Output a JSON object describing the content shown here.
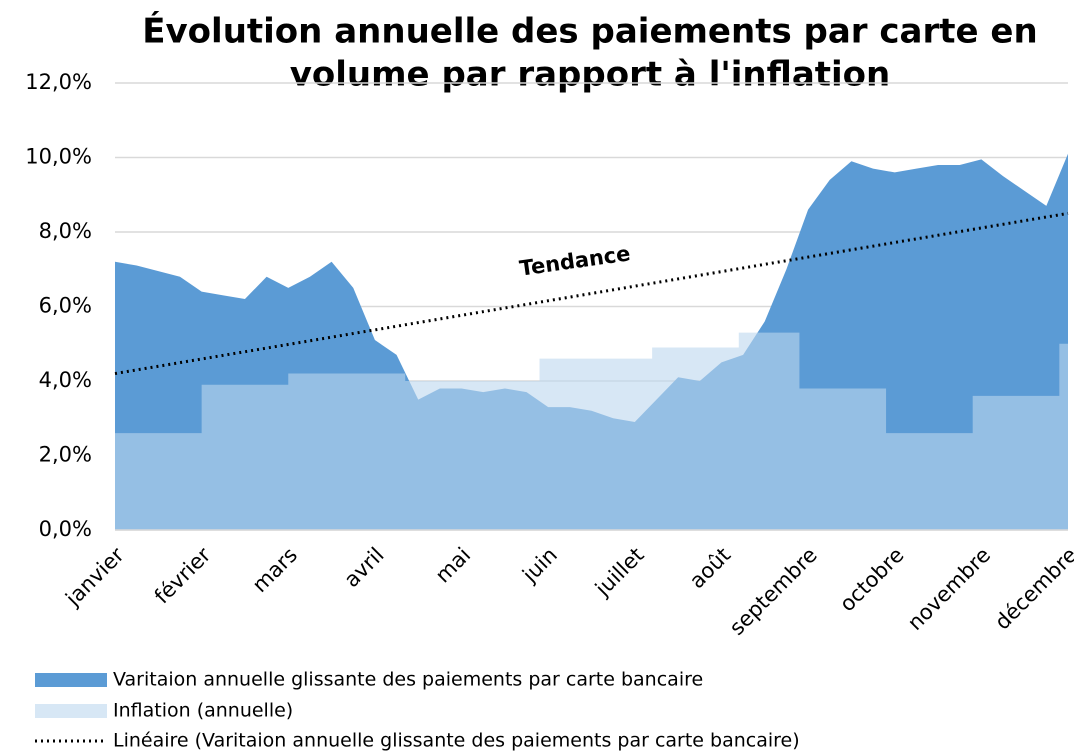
{
  "chart_data": {
    "type": "area",
    "title": [
      "Évolution annuelle des paiements par carte en",
      "volume par rapport à l'inflation"
    ],
    "annotation": "Tendance",
    "categories": [
      "janvier",
      "février",
      "mars",
      "avril",
      "mai",
      "juin",
      "juillet",
      "août",
      "septembre",
      "octobre",
      "novembre",
      "décembre"
    ],
    "xlim": [
      0,
      11
    ],
    "ylim": [
      0,
      12
    ],
    "yticks": [
      {
        "value": 0,
        "label": "0,0%"
      },
      {
        "value": 2,
        "label": "2,0%"
      },
      {
        "value": 4,
        "label": "4,0%"
      },
      {
        "value": 6,
        "label": "6,0%"
      },
      {
        "value": 8,
        "label": "8,0%"
      },
      {
        "value": 10,
        "label": "10,0%"
      },
      {
        "value": 12,
        "label": "12,0%"
      }
    ],
    "grid": true,
    "legend": "bottom",
    "series": [
      {
        "name": "Varitaion annuelle glissante des paiements par carte bancaire",
        "color": "#5b9bd5",
        "style": "area",
        "x": [
          0,
          0.25,
          0.5,
          0.75,
          1,
          1.25,
          1.5,
          1.75,
          2,
          2.25,
          2.5,
          2.75,
          3,
          3.25,
          3.5,
          3.75,
          4,
          4.25,
          4.5,
          4.75,
          5,
          5.25,
          5.5,
          5.75,
          6,
          6.25,
          6.5,
          6.75,
          7,
          7.25,
          7.5,
          7.75,
          8,
          8.25,
          8.5,
          8.75,
          9,
          9.25,
          9.5,
          9.75,
          10,
          10.25,
          10.5,
          10.75,
          11
        ],
        "values": [
          7.2,
          7.1,
          6.95,
          6.8,
          6.4,
          6.3,
          6.2,
          6.8,
          6.5,
          6.8,
          7.2,
          6.5,
          5.1,
          4.7,
          3.5,
          3.8,
          3.8,
          3.7,
          3.8,
          3.7,
          3.3,
          3.3,
          3.2,
          3.0,
          2.9,
          3.5,
          4.1,
          4.0,
          4.5,
          4.7,
          5.6,
          7.0,
          8.6,
          9.4,
          9.9,
          9.7,
          9.6,
          9.7,
          9.8,
          9.8,
          9.95,
          9.5,
          9.1,
          8.7,
          10.1
        ]
      },
      {
        "name": "Inflation (annuelle)",
        "color": "#bdd7ee",
        "style": "area",
        "x": [
          0,
          1,
          1,
          2,
          2,
          3.35,
          3.35,
          4.9,
          4.9,
          6.2,
          6.2,
          7.2,
          7.2,
          7.9,
          7.9,
          8.9,
          8.9,
          9.9,
          9.9,
          10.9,
          10.9,
          11
        ],
        "values": [
          2.6,
          2.6,
          3.9,
          3.9,
          4.2,
          4.2,
          4.0,
          4.0,
          4.6,
          4.6,
          4.9,
          4.9,
          5.3,
          5.3,
          3.8,
          3.8,
          2.6,
          2.6,
          3.6,
          3.6,
          5.0,
          5.0
        ]
      },
      {
        "name": "Linéaire (Varitaion annuelle glissante des paiements par carte bancaire)",
        "color": "#000000",
        "style": "dotted",
        "x": [
          0,
          11
        ],
        "values": [
          4.2,
          8.5
        ]
      }
    ]
  }
}
